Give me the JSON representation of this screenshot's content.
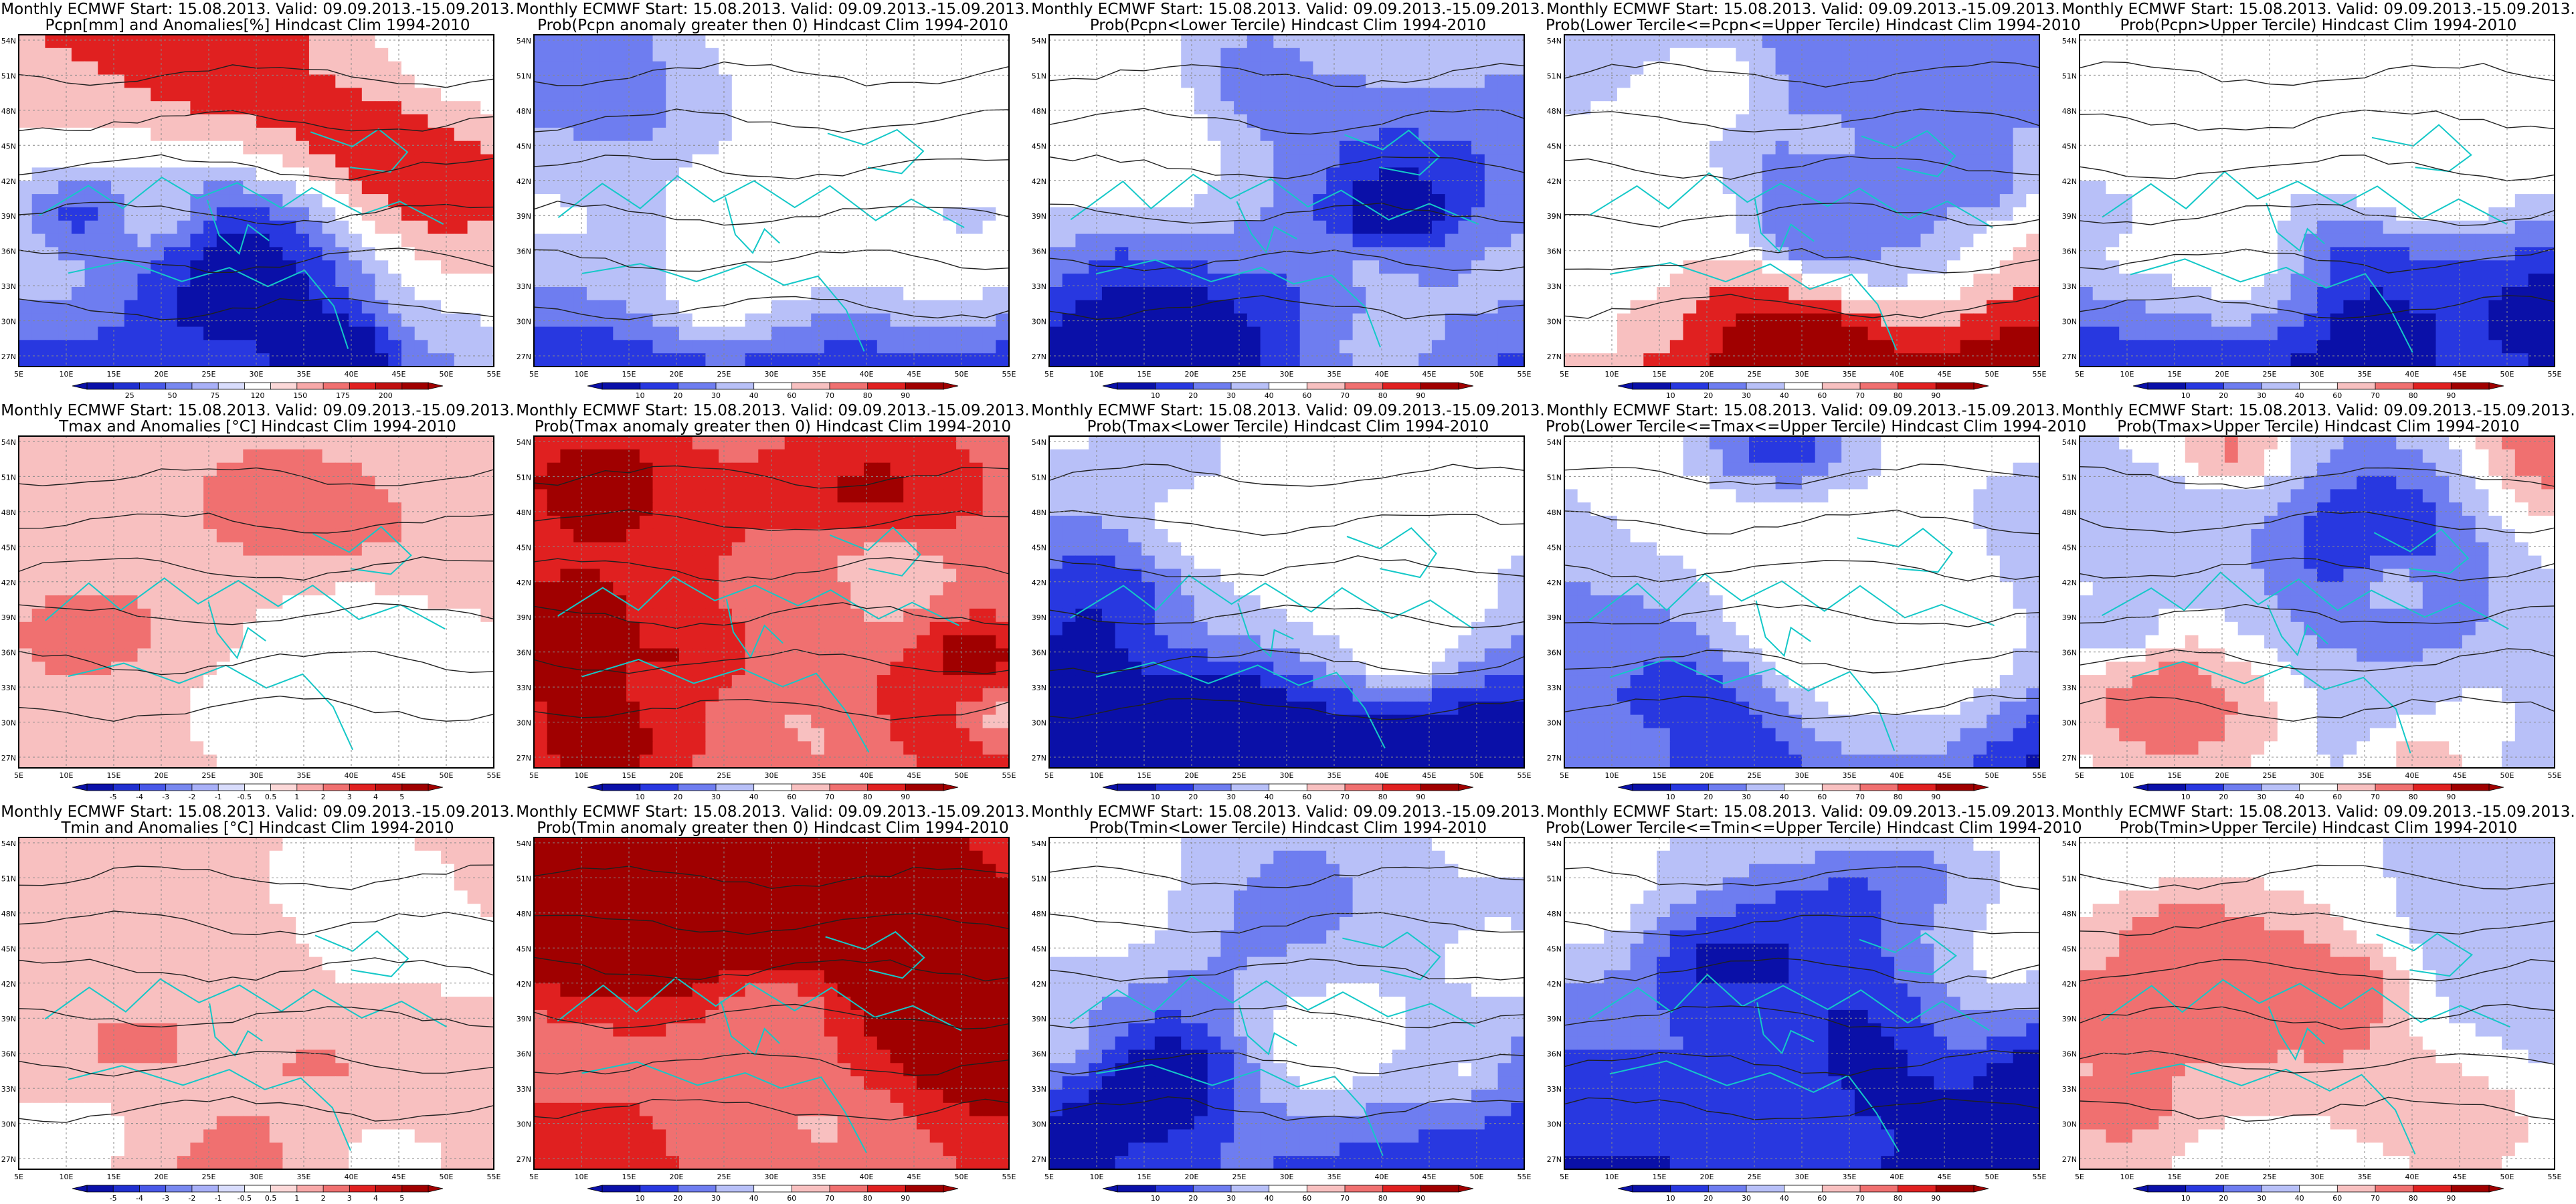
{
  "figure": {
    "rows": [
      {
        "panels": [
          {
            "title_line1": "Monthly ECMWF Start: 15.08.2013. Valid: 09.09.2013.-15.09.2013.",
            "title_line2": "Pcpn[mm] and Anomalies[%] Hindcast Clim 1994-2010",
            "scheme": "anom_pcp",
            "colorbar_labels": [
              "25",
              "50",
              "75",
              "120",
              "150",
              "175",
              "200"
            ]
          },
          {
            "title_line1": "Monthly ECMWF Start: 15.08.2013. Valid: 09.09.2013.-15.09.2013.",
            "title_line2": "Prob(Pcpn anomaly greater then 0) Hindcast Clim 1994-2010",
            "scheme": "prob_low",
            "colorbar_labels": [
              "10",
              "20",
              "30",
              "40",
              "60",
              "70",
              "80",
              "90"
            ]
          },
          {
            "title_line1": "Monthly ECMWF Start: 15.08.2013. Valid: 09.09.2013.-15.09.2013.",
            "title_line2": "Prob(Pcpn<Lower Tercile) Hindcast Clim 1994-2010",
            "scheme": "prob_low",
            "colorbar_labels": [
              "10",
              "20",
              "30",
              "40",
              "60",
              "70",
              "80",
              "90"
            ]
          },
          {
            "title_line1": "Monthly ECMWF Start: 15.08.2013. Valid: 09.09.2013.-15.09.2013.",
            "title_line2": "Prob(Lower Tercile<=Pcpn<=Upper Tercile) Hindcast Clim 1994-2010",
            "scheme": "prob_mid",
            "colorbar_labels": [
              "10",
              "20",
              "30",
              "40",
              "60",
              "70",
              "80",
              "90"
            ]
          },
          {
            "title_line1": "Monthly ECMWF Start: 15.08.2013. Valid: 09.09.2013.-15.09.2013.",
            "title_line2": "Prob(Pcpn>Upper Tercile) Hindcast Clim 1994-2010",
            "scheme": "prob_low",
            "colorbar_labels": [
              "10",
              "20",
              "30",
              "40",
              "60",
              "70",
              "80",
              "90"
            ]
          }
        ]
      },
      {
        "panels": [
          {
            "title_line1": "Monthly ECMWF Start: 15.08.2013. Valid: 09.09.2013.-15.09.2013.",
            "title_line2": "Tmax and Anomalies [°C] Hindcast Clim 1994-2010",
            "scheme": "anom_warm",
            "colorbar_labels": [
              "-5",
              "-4",
              "-3",
              "-2",
              "-1",
              "-0.5",
              "0.5",
              "1",
              "2",
              "3",
              "4",
              "5"
            ]
          },
          {
            "title_line1": "Monthly ECMWF Start: 15.08.2013. Valid: 09.09.2013.-15.09.2013.",
            "title_line2": "Prob(Tmax anomaly greater then 0) Hindcast Clim 1994-2010",
            "scheme": "prob_high",
            "colorbar_labels": [
              "10",
              "20",
              "30",
              "40",
              "60",
              "70",
              "80",
              "90"
            ]
          },
          {
            "title_line1": "Monthly ECMWF Start: 15.08.2013. Valid: 09.09.2013.-15.09.2013.",
            "title_line2": "Prob(Tmax<Lower Tercile) Hindcast Clim 1994-2010",
            "scheme": "prob_low",
            "colorbar_labels": [
              "10",
              "20",
              "30",
              "40",
              "60",
              "70",
              "80",
              "90"
            ]
          },
          {
            "title_line1": "Monthly ECMWF Start: 15.08.2013. Valid: 09.09.2013.-15.09.2013.",
            "title_line2": "Prob(Lower Tercile<=Tmax<=Upper Tercile) Hindcast Clim 1994-2010",
            "scheme": "prob_low",
            "colorbar_labels": [
              "10",
              "20",
              "30",
              "40",
              "60",
              "70",
              "80",
              "90"
            ]
          },
          {
            "title_line1": "Monthly ECMWF Start: 15.08.2013. Valid: 09.09.2013.-15.09.2013.",
            "title_line2": "Prob(Tmax>Upper Tercile) Hindcast Clim 1994-2010",
            "scheme": "prob_mixed",
            "colorbar_labels": [
              "10",
              "20",
              "30",
              "40",
              "60",
              "70",
              "80",
              "90"
            ]
          }
        ]
      },
      {
        "panels": [
          {
            "title_line1": "Monthly ECMWF Start: 15.08.2013. Valid: 09.09.2013.-15.09.2013.",
            "title_line2": "Tmin and Anomalies [°C] Hindcast Clim 1994-2010",
            "scheme": "anom_warm",
            "colorbar_labels": [
              "-5",
              "-4",
              "-3",
              "-2",
              "-1",
              "-0.5",
              "0.5",
              "1",
              "2",
              "3",
              "4",
              "5"
            ]
          },
          {
            "title_line1": "Monthly ECMWF Start: 15.08.2013. Valid: 09.09.2013.-15.09.2013.",
            "title_line2": "Prob(Tmin anomaly greater then 0) Hindcast Clim 1994-2010",
            "scheme": "prob_high",
            "colorbar_labels": [
              "10",
              "20",
              "30",
              "40",
              "60",
              "70",
              "80",
              "90"
            ]
          },
          {
            "title_line1": "Monthly ECMWF Start: 15.08.2013. Valid: 09.09.2013.-15.09.2013.",
            "title_line2": "Prob(Tmin<Lower Tercile) Hindcast Clim 1994-2010",
            "scheme": "prob_low",
            "colorbar_labels": [
              "10",
              "20",
              "30",
              "40",
              "60",
              "70",
              "80",
              "90"
            ]
          },
          {
            "title_line1": "Monthly ECMWF Start: 15.08.2013. Valid: 09.09.2013.-15.09.2013.",
            "title_line2": "Prob(Lower Tercile<=Tmin<=Upper Tercile) Hindcast Clim 1994-2010",
            "scheme": "prob_low",
            "colorbar_labels": [
              "10",
              "20",
              "30",
              "40",
              "60",
              "70",
              "80",
              "90"
            ]
          },
          {
            "title_line1": "Monthly ECMWF Start: 15.08.2013. Valid: 09.09.2013.-15.09.2013.",
            "title_line2": "Prob(Tmin>Upper Tercile) Hindcast Clim 1994-2010",
            "scheme": "prob_mixed",
            "colorbar_labels": [
              "10",
              "20",
              "30",
              "40",
              "60",
              "70",
              "80",
              "90"
            ]
          }
        ]
      }
    ],
    "lat_labels": [
      "54N",
      "51N",
      "48N",
      "45N",
      "42N",
      "39N",
      "36N",
      "33N",
      "30N",
      "27N"
    ],
    "lon_labels": [
      "5E",
      "10E",
      "15E",
      "20E",
      "25E",
      "30E",
      "35E",
      "40E",
      "45E",
      "50E",
      "55E"
    ],
    "colors": {
      "deep_blue": "#0a10a8",
      "blue": "#2838e0",
      "mid_blue": "#6e7df0",
      "light_blue": "#b8c0f8",
      "white": "#ffffff",
      "light_red": "#f8c0c0",
      "mid_red": "#f07070",
      "red": "#e02020",
      "deep_red": "#a00000",
      "coast": "#14c8c8",
      "contour": "#202020"
    }
  }
}
